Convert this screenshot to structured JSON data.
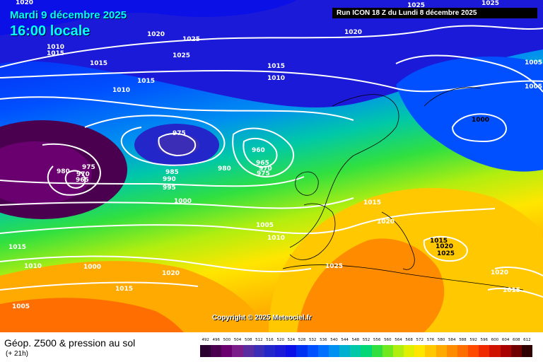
{
  "header": {
    "date": "Mardi 9 décembre 2025",
    "time": "16:00 locale",
    "run": "Run ICON 18 Z du Lundi 8 décembre 2025"
  },
  "footer": {
    "title": "Géop. Z500 & pression au sol",
    "subtitle": "(+ 21h)",
    "copyright": "Copyright © 2025 Meteociel.fr"
  },
  "legend": {
    "ticks": [
      "492",
      "496",
      "500",
      "504",
      "508",
      "512",
      "516",
      "520",
      "524",
      "528",
      "532",
      "536",
      "540",
      "544",
      "548",
      "552",
      "556",
      "560",
      "564",
      "568",
      "572",
      "576",
      "580",
      "584",
      "588",
      "592",
      "596",
      "600",
      "604",
      "608",
      "612"
    ],
    "colors": [
      "#2a0030",
      "#4a004f",
      "#6a0070",
      "#7a1d8a",
      "#5a2ca0",
      "#3b2db5",
      "#2326c8",
      "#1a1ad8",
      "#0a10e6",
      "#0030f2",
      "#0050ff",
      "#0070ff",
      "#0090f0",
      "#00b0d0",
      "#00c8a8",
      "#00d878",
      "#30e040",
      "#70e820",
      "#b0ee10",
      "#e0ee00",
      "#ffe600",
      "#ffc800",
      "#ffaa00",
      "#ff8c00",
      "#ff6e00",
      "#ff4a00",
      "#f02a00",
      "#d01200",
      "#a80000",
      "#700000",
      "#300000"
    ]
  },
  "isobar_labels": [
    "1020",
    "1020",
    "1025",
    "1025",
    "1010",
    "1015",
    "1015",
    "1015",
    "1010",
    "1020",
    "1015",
    "1010",
    "1025",
    "1025",
    "1005",
    "1005",
    "1000",
    "975",
    "960",
    "965",
    "970",
    "975",
    "980",
    "975",
    "970",
    "965",
    "980",
    "985",
    "990",
    "995",
    "1000",
    "1005",
    "1010",
    "1015",
    "1020",
    "1015",
    "1020",
    "1025",
    "1025",
    "1020",
    "1015",
    "1015",
    "1010",
    "1000",
    "1020",
    "1015",
    "1005"
  ]
}
